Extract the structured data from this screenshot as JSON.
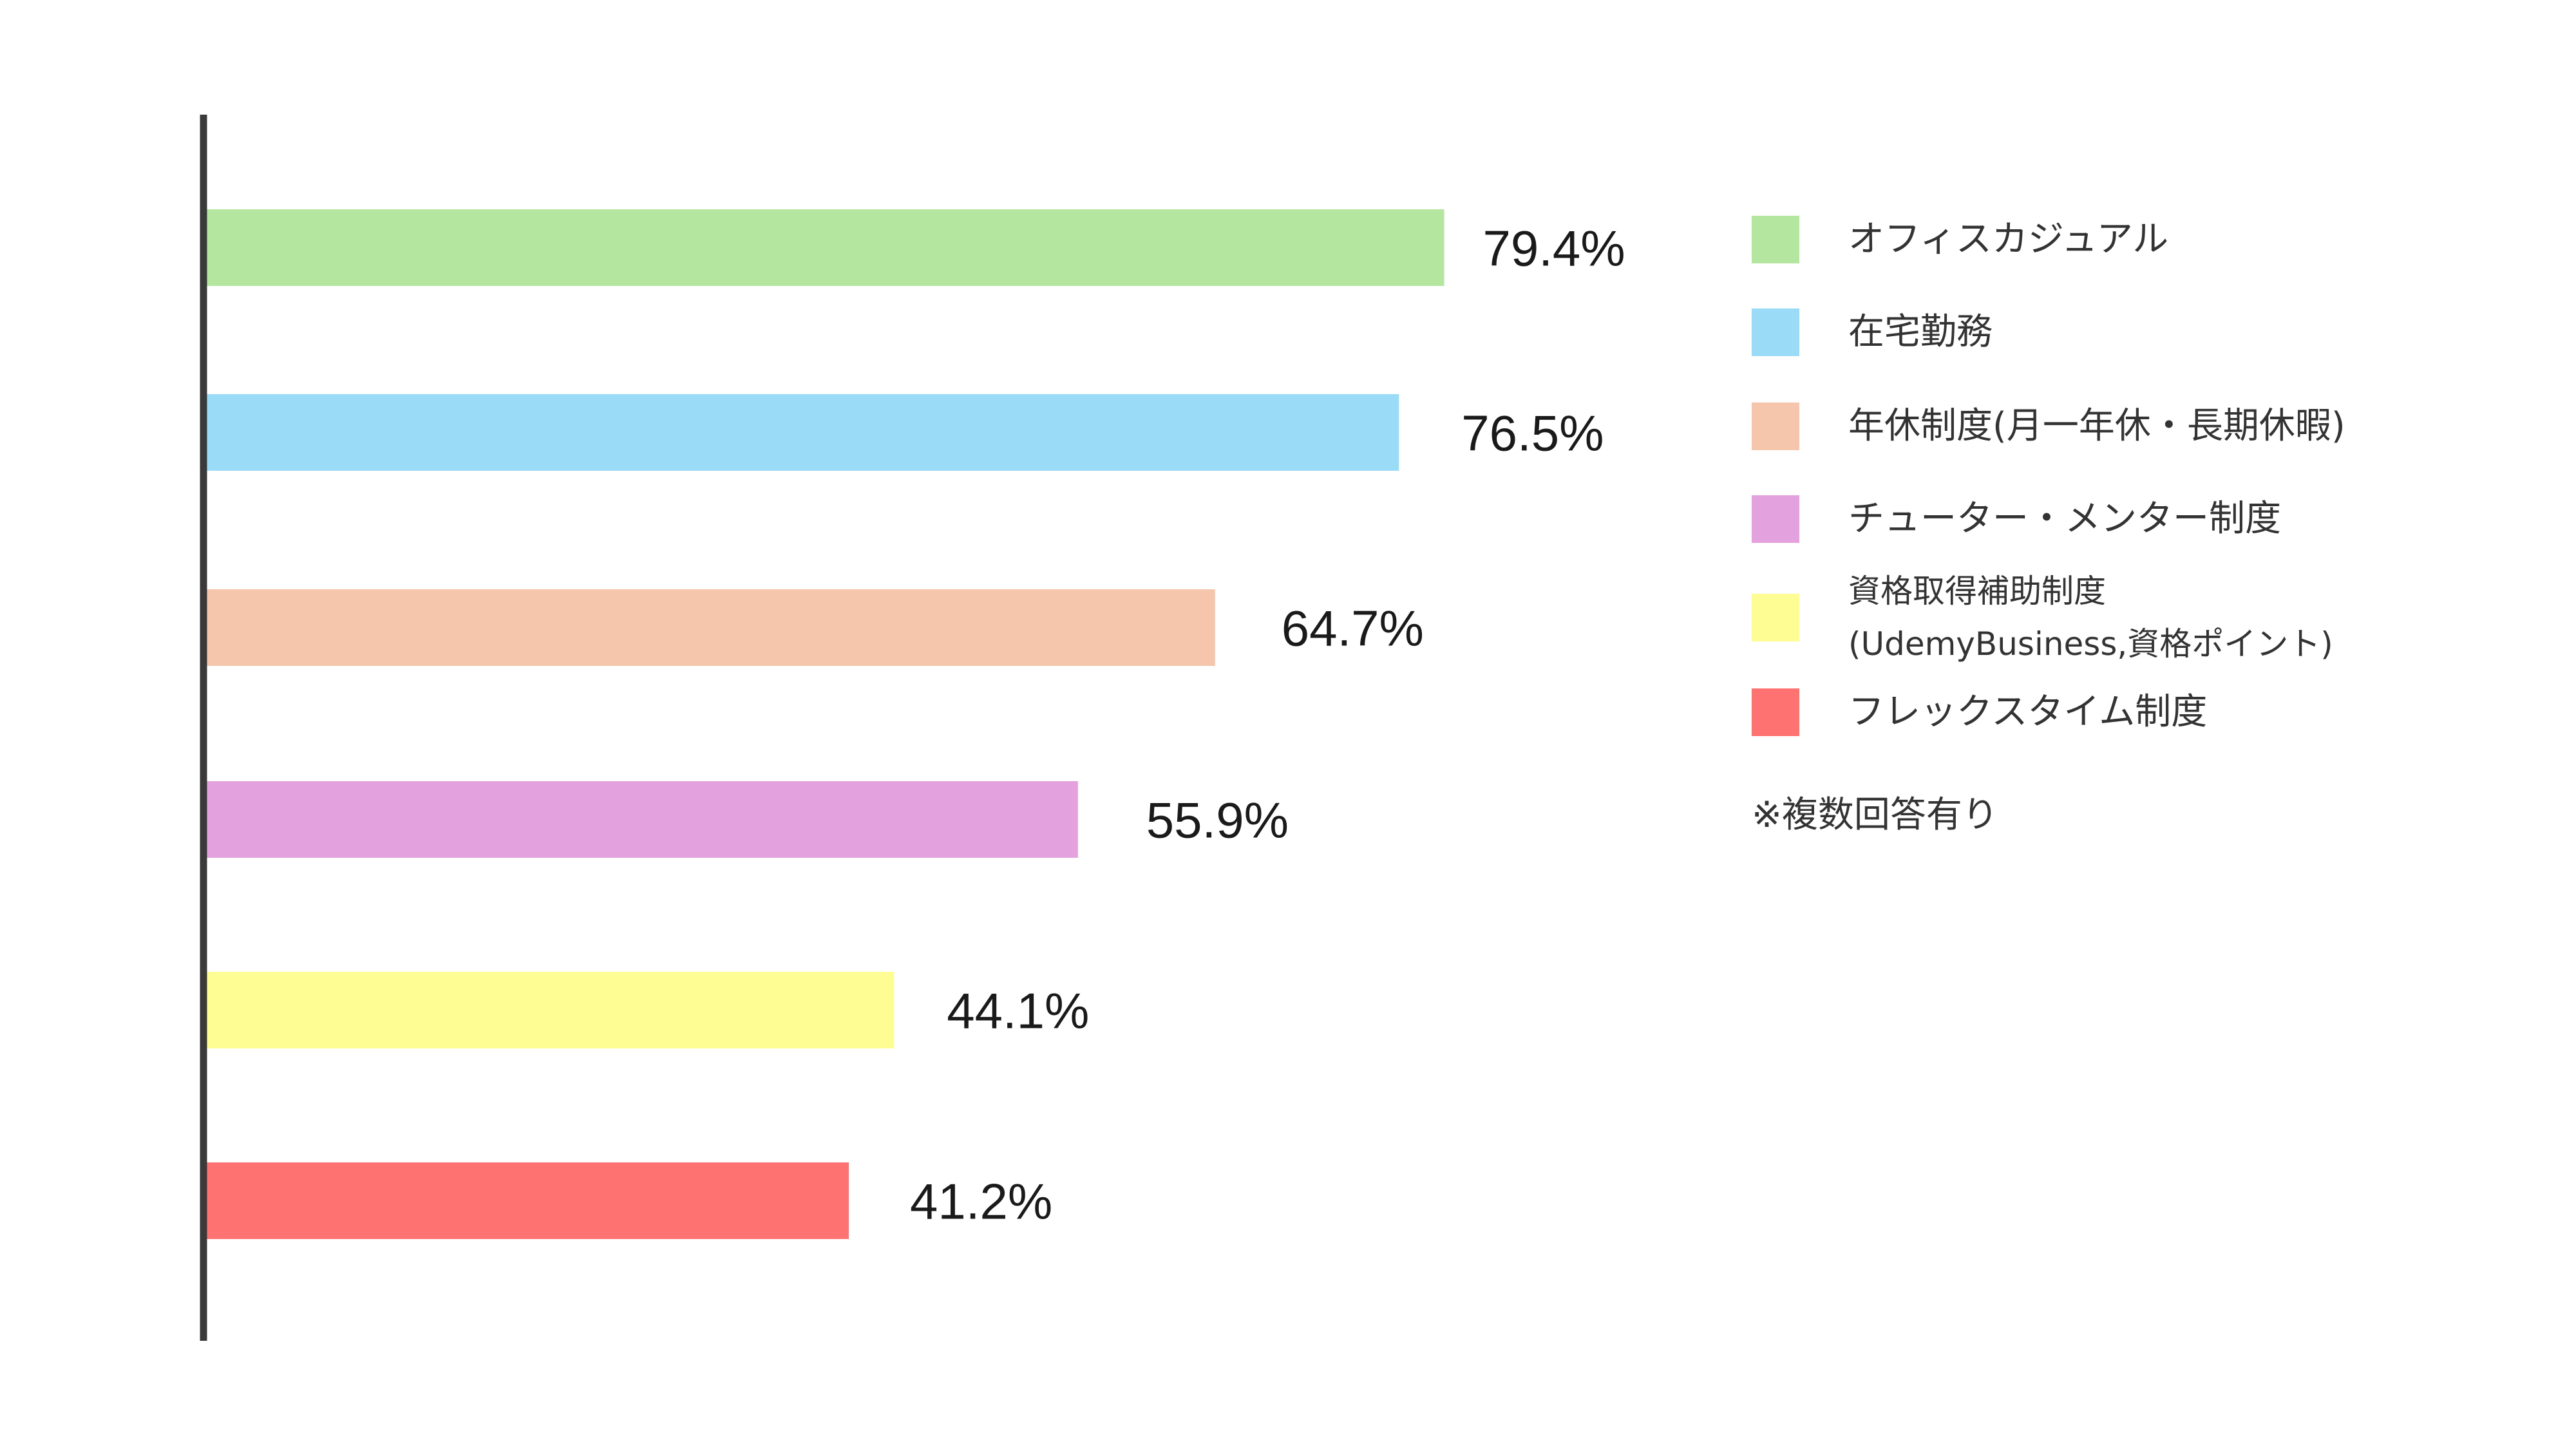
{
  "chart_data": {
    "type": "bar",
    "orientation": "horizontal",
    "categories": [
      "オフィスカジュアル",
      "在宅勤務",
      "年休制度(月一年休・長期休暇)",
      "チューター・メンター制度",
      "資格取得補助制度(UdemyBusiness,資格ポイント)",
      "フレックスタイム制度"
    ],
    "values": [
      79.4,
      76.5,
      64.7,
      55.9,
      44.1,
      41.2
    ],
    "value_labels": [
      "79.4%",
      "76.5%",
      "64.7%",
      "55.9%",
      "44.1%",
      "41.2%"
    ],
    "colors": [
      "#b5e6a0",
      "#9adcf7",
      "#f6c6ac",
      "#e3a1dd",
      "#fdfd94",
      "#ff7272"
    ],
    "xlim": [
      0,
      100
    ],
    "grid": false,
    "legend_position": "right"
  },
  "legend": {
    "items": [
      {
        "label_lines": [
          "オフィスカジュアル"
        ],
        "color": "#b5e6a0"
      },
      {
        "label_lines": [
          "在宅勤務"
        ],
        "color": "#9adcf7"
      },
      {
        "label_lines": [
          "年休制度(月一年休・長期休暇)"
        ],
        "color": "#f6c6ac"
      },
      {
        "label_lines": [
          "チューター・メンター制度"
        ],
        "color": "#e3a1dd"
      },
      {
        "label_lines": [
          "資格取得補助制度",
          "(UdemyBusiness,資格ポイント)"
        ],
        "color": "#fdfd94"
      },
      {
        "label_lines": [
          "フレックスタイム制度"
        ],
        "color": "#ff7272"
      }
    ],
    "note": "※複数回答有り"
  },
  "colors": {
    "axis": "#3a3a3a",
    "text": "#333333"
  }
}
